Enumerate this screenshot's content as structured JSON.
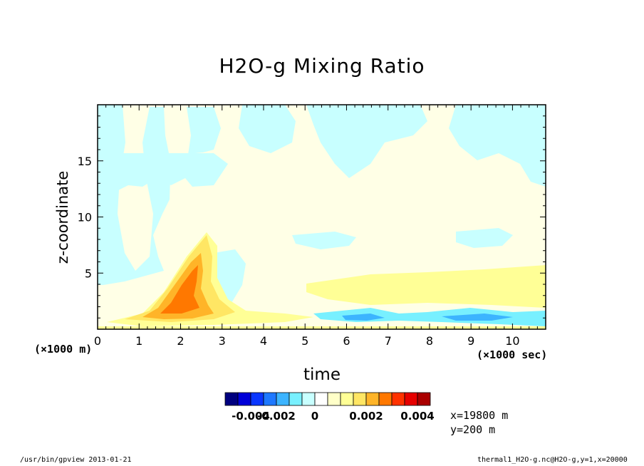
{
  "chart_data": {
    "type": "heatmap",
    "title": "H2O-g Mixing Ratio",
    "xlabel": "time",
    "ylabel": "z-coordinate",
    "x_multiplier": "(×1000 sec)",
    "y_multiplier": "(×1000 m)",
    "x_ticks": [
      "0",
      "1",
      "2",
      "3",
      "4",
      "5",
      "6",
      "7",
      "8",
      "9",
      "10"
    ],
    "y_ticks": [
      "5",
      "10",
      "15"
    ],
    "xlim": [
      0,
      10.8
    ],
    "ylim": [
      0,
      20
    ],
    "colorbar": {
      "levels": [
        -0.005,
        -0.004,
        -0.003,
        -0.002,
        -0.001,
        -0.0005,
        0,
        0.0005,
        0.001,
        0.0015,
        0.002,
        0.0025,
        0.003,
        0.0035,
        0.004
      ],
      "colors": [
        "#00007f",
        "#0000d8",
        "#0a36ff",
        "#1e78ff",
        "#3cb4ff",
        "#78f0ff",
        "#c8ffff",
        "#ffffff",
        "#ffffc8",
        "#ffff96",
        "#ffe664",
        "#ffb428",
        "#ff7800",
        "#ff3200",
        "#e60000",
        "#aa0000"
      ],
      "tick_labels": [
        "-0.004",
        "-0.002",
        "0",
        "0.002",
        "0.004"
      ],
      "tick_values": [
        -0.004,
        -0.002,
        0,
        0.002,
        0.004
      ]
    },
    "regions": [
      {
        "kind": "negative",
        "value": -0.0007,
        "note": "upper-left columns"
      },
      {
        "kind": "negative",
        "value": -0.0015,
        "note": "near-surface band 6-10 ks"
      },
      {
        "kind": "positive",
        "value": 0.0012,
        "note": "lower layer 4-11 ks"
      },
      {
        "kind": "positive",
        "value": 0.0035,
        "note": "plume core near 2 ks, 0-5 km"
      }
    ]
  },
  "annotations": {
    "x_position": "x=19800 m",
    "y_position": "y=200 m"
  },
  "footer": {
    "left": "/usr/bin/gpview  2013-01-21",
    "right": "thermal1_H2O-g.nc@H2O-g,y=1,x=20000"
  }
}
